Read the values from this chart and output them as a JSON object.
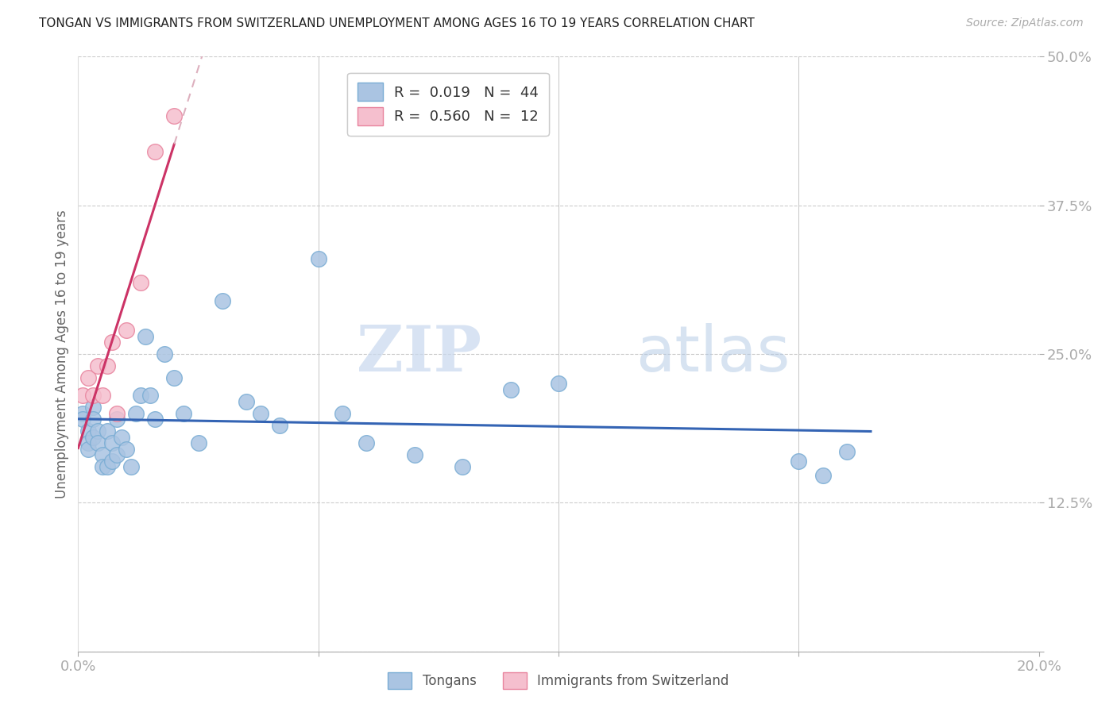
{
  "title": "TONGAN VS IMMIGRANTS FROM SWITZERLAND UNEMPLOYMENT AMONG AGES 16 TO 19 YEARS CORRELATION CHART",
  "source": "Source: ZipAtlas.com",
  "ylabel": "Unemployment Among Ages 16 to 19 years",
  "xlim": [
    0.0,
    0.2
  ],
  "ylim": [
    0.0,
    0.5
  ],
  "xticks": [
    0.0,
    0.05,
    0.1,
    0.15,
    0.2
  ],
  "xticklabels": [
    "0.0%",
    "",
    "",
    "",
    "20.0%"
  ],
  "yticks": [
    0.0,
    0.125,
    0.25,
    0.375,
    0.5
  ],
  "yticklabels": [
    "",
    "12.5%",
    "25.0%",
    "37.5%",
    "50.0%"
  ],
  "tongan_color": "#aac4e2",
  "tongan_edge": "#7aadd4",
  "swiss_color": "#f5bfce",
  "swiss_edge": "#e8849e",
  "trend_tongan_color": "#3464b4",
  "trend_swiss_color": "#cc3366",
  "trend_swiss_dash_color": "#ddb0be",
  "watermark_zip": "ZIP",
  "watermark_atlas": "atlas",
  "legend_items": [
    {
      "label": "R =  0.019   N =  44",
      "color": "#aac4e2",
      "edge": "#7aadd4"
    },
    {
      "label": "R =  0.560   N =  12",
      "color": "#f5bfce",
      "edge": "#e8849e"
    }
  ],
  "bottom_legend": [
    {
      "label": "Tongans",
      "color": "#aac4e2",
      "edge": "#7aadd4"
    },
    {
      "label": "Immigrants from Switzerland",
      "color": "#f5bfce",
      "edge": "#e8849e"
    }
  ],
  "tongan_x": [
    0.001,
    0.001,
    0.002,
    0.002,
    0.002,
    0.003,
    0.003,
    0.003,
    0.004,
    0.004,
    0.005,
    0.005,
    0.006,
    0.006,
    0.007,
    0.007,
    0.008,
    0.008,
    0.009,
    0.01,
    0.011,
    0.012,
    0.013,
    0.014,
    0.015,
    0.016,
    0.018,
    0.02,
    0.022,
    0.025,
    0.03,
    0.035,
    0.038,
    0.042,
    0.05,
    0.055,
    0.06,
    0.07,
    0.08,
    0.09,
    0.1,
    0.15,
    0.155,
    0.16
  ],
  "tongan_y": [
    0.2,
    0.195,
    0.185,
    0.175,
    0.17,
    0.205,
    0.195,
    0.18,
    0.185,
    0.175,
    0.165,
    0.155,
    0.155,
    0.185,
    0.175,
    0.16,
    0.195,
    0.165,
    0.18,
    0.17,
    0.155,
    0.2,
    0.215,
    0.265,
    0.215,
    0.195,
    0.25,
    0.23,
    0.2,
    0.175,
    0.295,
    0.21,
    0.2,
    0.19,
    0.33,
    0.2,
    0.175,
    0.165,
    0.155,
    0.22,
    0.225,
    0.16,
    0.148,
    0.168
  ],
  "swiss_x": [
    0.001,
    0.002,
    0.003,
    0.004,
    0.005,
    0.006,
    0.007,
    0.008,
    0.01,
    0.013,
    0.016,
    0.02
  ],
  "swiss_y": [
    0.215,
    0.23,
    0.215,
    0.24,
    0.215,
    0.24,
    0.26,
    0.2,
    0.27,
    0.31,
    0.42,
    0.45
  ]
}
